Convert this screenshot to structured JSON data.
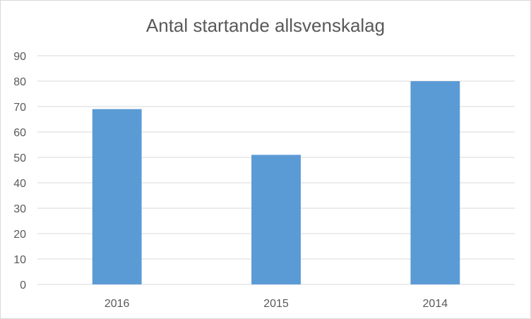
{
  "chart_data": {
    "type": "bar",
    "title": "Antal startande allsvenskalag",
    "categories": [
      "2016",
      "2015",
      "2014"
    ],
    "values": [
      69,
      51,
      80
    ],
    "ylim": [
      0,
      90
    ],
    "yticks": [
      0,
      10,
      20,
      30,
      40,
      50,
      60,
      70,
      80,
      90
    ],
    "grid": true,
    "legend": "none",
    "colors": {
      "bar": "#5b9bd5",
      "grid": "#d9d9d9",
      "text": "#595959"
    }
  }
}
